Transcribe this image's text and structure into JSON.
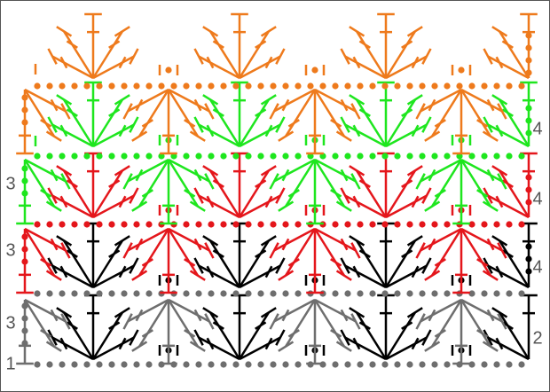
{
  "row_numbers": {
    "left": [
      "1",
      "3",
      "3",
      "3"
    ],
    "right": [
      "2",
      "4",
      "4",
      "4"
    ]
  }
}
